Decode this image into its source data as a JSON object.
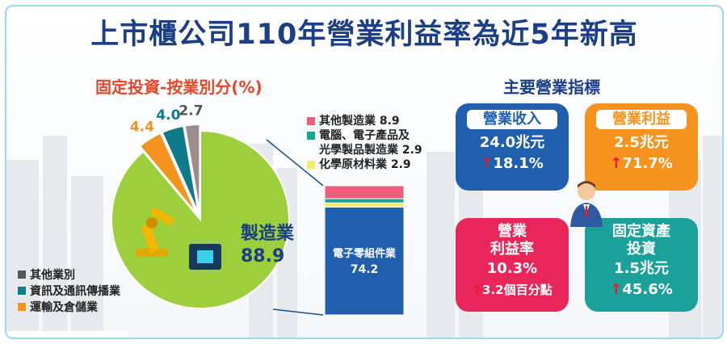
{
  "title": "上市櫃公司110年營業利益率為近5年新高",
  "left_subtitle": "固定投資-按業別分(%)",
  "right_subtitle": "主要營業指標",
  "colors": {
    "manufacturing": "#9dce3c",
    "transport": "#f6921e",
    "ict": "#0f7a8a",
    "other_industry": "#9c8e8e",
    "electronic_components": "#1f5fae",
    "other_manufacturing": "#ef5d7c",
    "computer_electronics": "#19a68e",
    "chemical": "#f4ec6e",
    "title": "#1b3f86",
    "subtitle": "#e8462a",
    "up_arrow": "#e8192c"
  },
  "chart_data": {
    "type": "pie",
    "title": "固定投資-按業別分(%)",
    "slices": [
      {
        "name": "製造業",
        "value": 88.9,
        "label": "88.9"
      },
      {
        "name": "運輸及倉儲業",
        "value": 4.4,
        "label": "4.4"
      },
      {
        "name": "資訊及通訊傳播業",
        "value": 4.0,
        "label": "4.0"
      },
      {
        "name": "其他業別",
        "value": 2.7,
        "label": "2.7"
      }
    ],
    "breakdown": {
      "of": "製造業",
      "type": "stacked-bar",
      "segments": [
        {
          "name": "電子零組件業",
          "value": 74.2
        },
        {
          "name": "化學原材料業",
          "value": 2.9
        },
        {
          "name": "電腦、電子產品及光學製品製造業",
          "value": 2.9
        },
        {
          "name": "其他製造業",
          "value": 8.9
        }
      ]
    }
  },
  "pie_center_label": {
    "name": "製造業",
    "value": "88.9"
  },
  "bar_inner_label": {
    "name": "電子零組件業",
    "value": "74.2"
  },
  "legend_left": [
    {
      "label": "其他業別",
      "color": "#555555"
    },
    {
      "label": "資訊及通訊傳播業",
      "color": "#0f7a8a"
    },
    {
      "label": "運輸及倉儲業",
      "color": "#f6921e"
    }
  ],
  "legend_right": [
    {
      "line1": "其他製造業 8.9",
      "line2": "",
      "color": "#ef5d7c"
    },
    {
      "line1": "電腦、電子產品及",
      "line2": "光學製品製造業 2.9",
      "color": "#19a68e"
    },
    {
      "line1": "化學原材料業 2.9",
      "line2": "",
      "color": "#f4ec6e"
    }
  ],
  "indicators": [
    {
      "title": "營業收入",
      "value": "24.0兆元",
      "change": "18.1%"
    },
    {
      "title": "營業利益",
      "value": "2.5兆元",
      "change": "71.7%"
    },
    {
      "title_line1": "營業",
      "title_line2": "利益率",
      "value": "10.3%",
      "change": "3.2個百分點"
    },
    {
      "title_line1": "固定資產",
      "title_line2": "投資",
      "value": "1.5兆元",
      "change": "45.6%"
    }
  ],
  "arrow_symbol": "↑"
}
